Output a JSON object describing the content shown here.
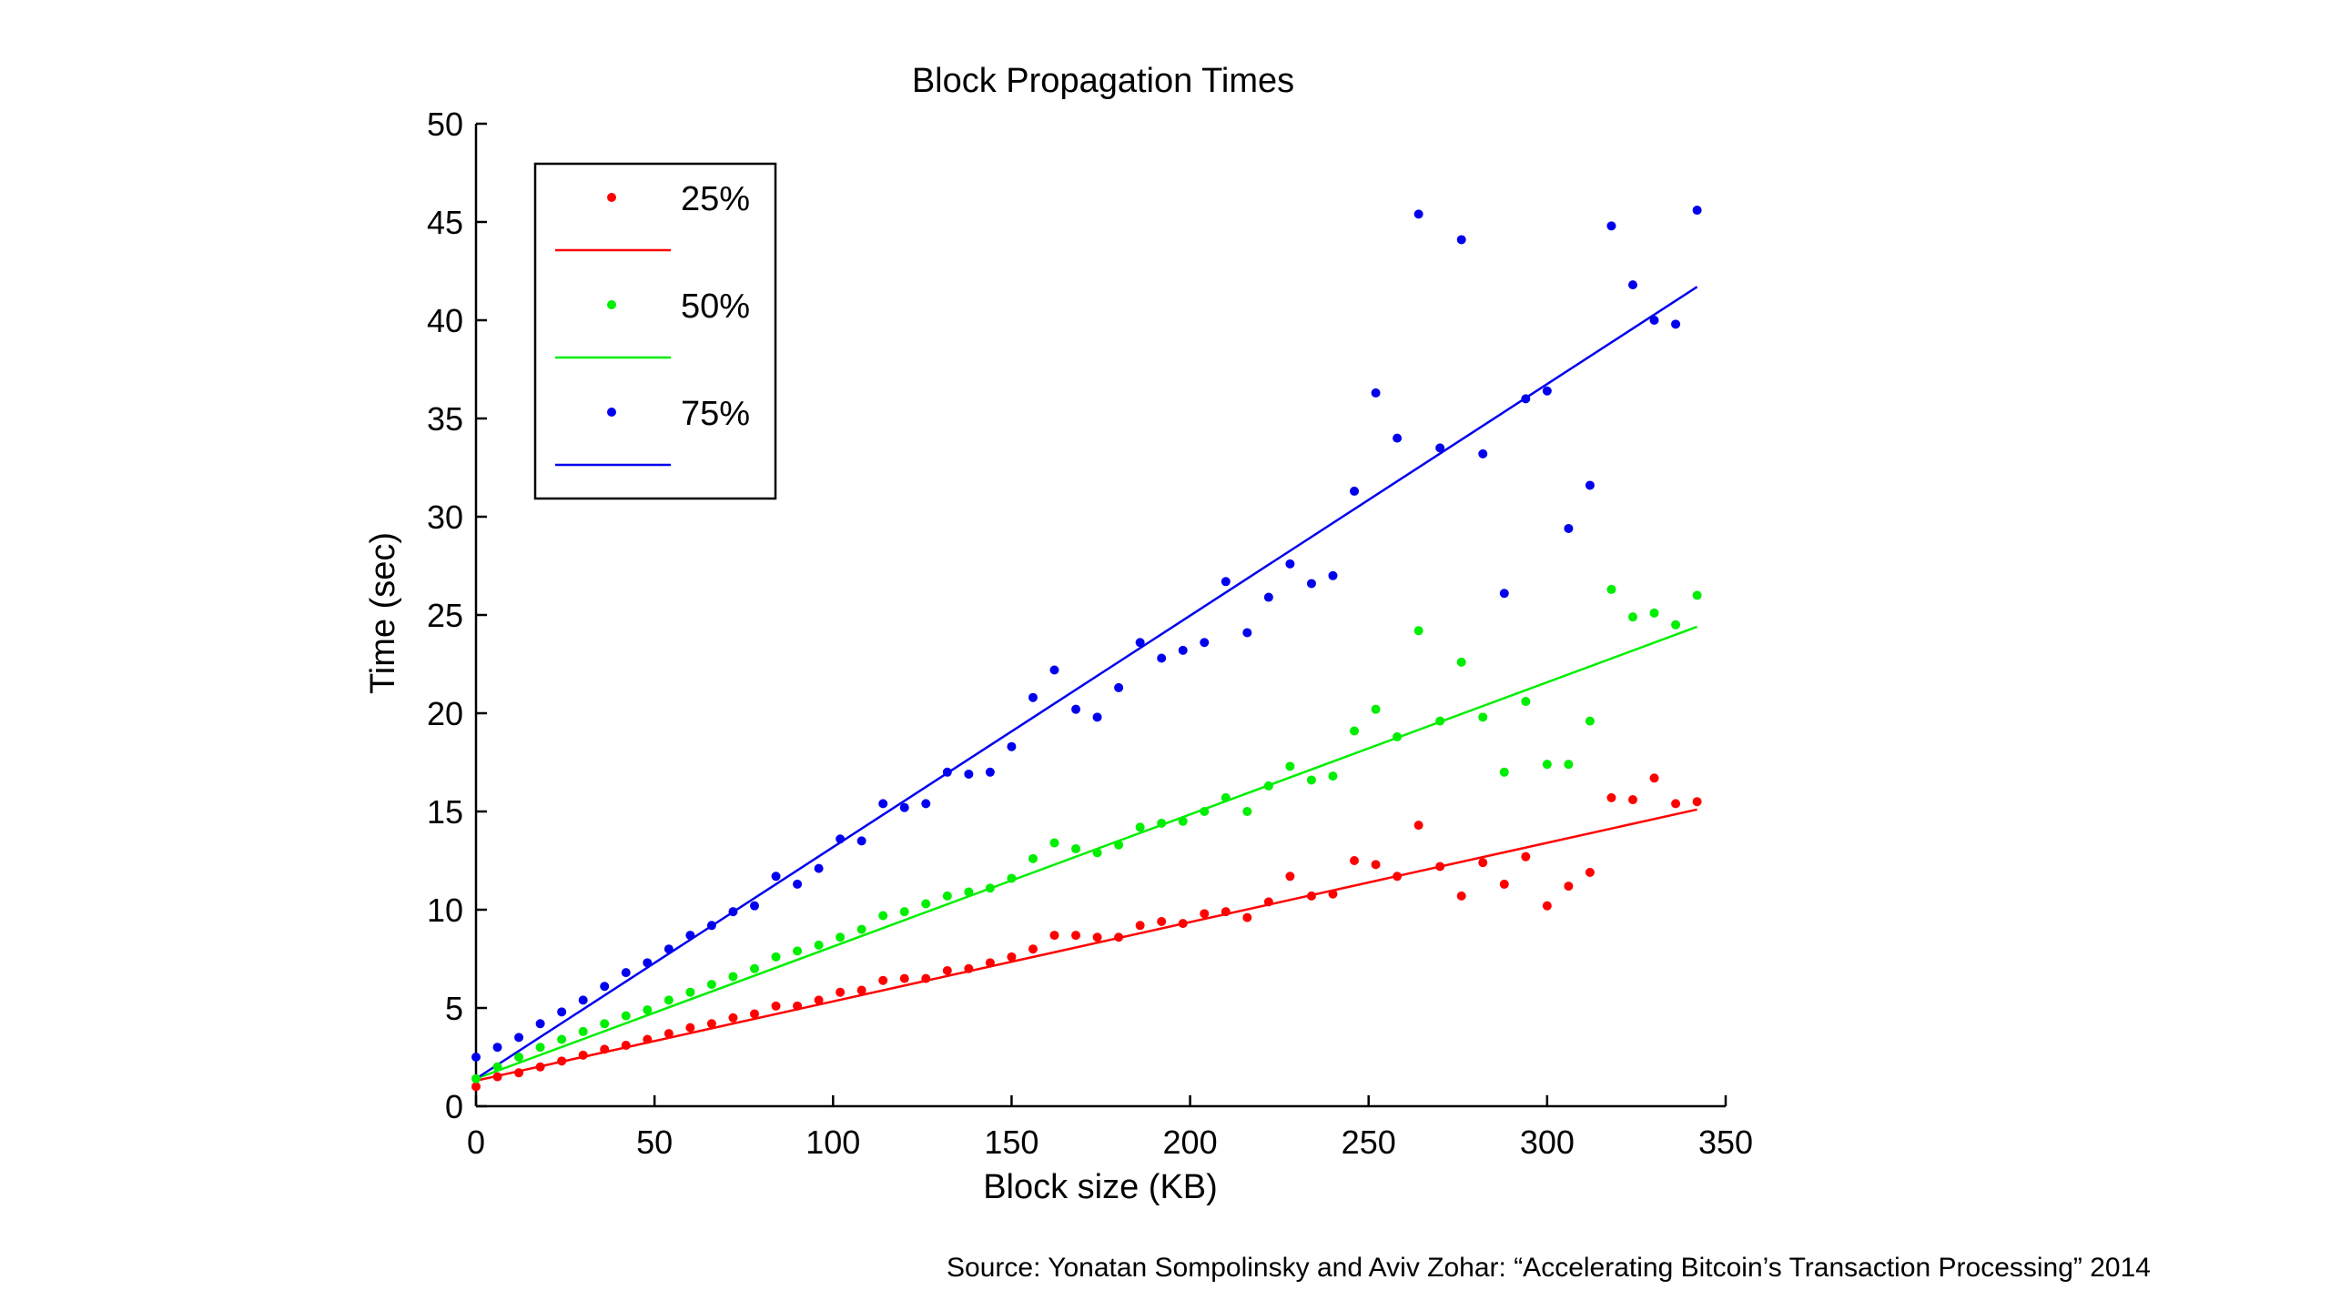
{
  "source": "Source: Yonatan Sompolinsky and Aviv Zohar: “Accelerating Bitcoin’s Transaction Processing” 2014",
  "chart_data": {
    "type": "scatter",
    "title": "Block Propagation Times",
    "xlabel": "Block size (KB)",
    "ylabel": "Time (sec)",
    "xlim": [
      0,
      350
    ],
    "ylim": [
      0,
      50
    ],
    "xticks": [
      0,
      50,
      100,
      150,
      200,
      250,
      300,
      350
    ],
    "yticks": [
      0,
      5,
      10,
      15,
      20,
      25,
      30,
      35,
      40,
      45,
      50
    ],
    "grid": false,
    "legend_position": "top-left",
    "x": [
      0,
      6,
      12,
      18,
      24,
      30,
      36,
      42,
      48,
      54,
      60,
      66,
      72,
      78,
      84,
      90,
      96,
      102,
      108,
      114,
      120,
      126,
      132,
      138,
      144,
      150,
      156,
      162,
      168,
      174,
      180,
      186,
      192,
      198,
      204,
      210,
      216,
      222,
      228,
      234,
      240,
      246,
      252,
      258,
      264,
      270,
      276,
      282,
      288,
      294,
      300,
      306,
      312,
      318,
      324,
      330,
      336,
      342
    ],
    "series": [
      {
        "name": "25%",
        "color": "#ff0000",
        "values": [
          1.0,
          1.5,
          1.7,
          2.0,
          2.3,
          2.6,
          2.9,
          3.1,
          3.4,
          3.7,
          4.0,
          4.2,
          4.5,
          4.7,
          5.1,
          5.1,
          5.4,
          5.8,
          5.9,
          6.4,
          6.5,
          6.5,
          6.9,
          7.0,
          7.3,
          7.6,
          8.0,
          8.7,
          8.7,
          8.6,
          8.6,
          9.2,
          9.4,
          9.3,
          9.8,
          9.9,
          9.6,
          10.4,
          11.7,
          10.7,
          10.8,
          12.5,
          12.3,
          11.7,
          14.3,
          12.2,
          10.7,
          12.4,
          11.3,
          12.7,
          10.2,
          11.2,
          11.9,
          15.7,
          15.6,
          16.7,
          15.4,
          15.5
        ],
        "fit": [
          1.3,
          15.1
        ]
      },
      {
        "name": "50%",
        "color": "#00ee00",
        "values": [
          1.4,
          2.0,
          2.5,
          3.0,
          3.4,
          3.8,
          4.2,
          4.6,
          4.9,
          5.4,
          5.8,
          6.2,
          6.6,
          7.0,
          7.6,
          7.9,
          8.2,
          8.6,
          9.0,
          9.7,
          9.9,
          10.3,
          10.7,
          10.9,
          11.1,
          11.6,
          12.6,
          13.4,
          13.1,
          12.9,
          13.3,
          14.2,
          14.4,
          14.5,
          15.0,
          15.7,
          15.0,
          16.3,
          17.3,
          16.6,
          16.8,
          19.1,
          20.2,
          18.8,
          24.2,
          19.6,
          22.6,
          19.8,
          17.0,
          20.6,
          17.4,
          17.4,
          19.6,
          26.3,
          24.9,
          25.1,
          24.5,
          26.0
        ],
        "fit": [
          1.4,
          24.4
        ]
      },
      {
        "name": "75%",
        "color": "#0000ee",
        "values": [
          2.5,
          3.0,
          3.5,
          4.2,
          4.8,
          5.4,
          6.1,
          6.8,
          7.3,
          8.0,
          8.7,
          9.2,
          9.9,
          10.2,
          11.7,
          11.3,
          12.1,
          13.6,
          13.5,
          15.4,
          15.2,
          15.4,
          17.0,
          16.9,
          17.0,
          18.3,
          20.8,
          22.2,
          20.2,
          19.8,
          21.3,
          23.6,
          22.8,
          23.2,
          23.6,
          26.7,
          24.1,
          25.9,
          27.6,
          26.6,
          27.0,
          31.3,
          36.3,
          34.0,
          45.4,
          33.5,
          44.1,
          33.2,
          26.1,
          36.0,
          36.4,
          29.4,
          31.6,
          44.8,
          41.8,
          40.0,
          39.8,
          45.6
        ],
        "fit": [
          1.4,
          41.7
        ]
      }
    ]
  }
}
